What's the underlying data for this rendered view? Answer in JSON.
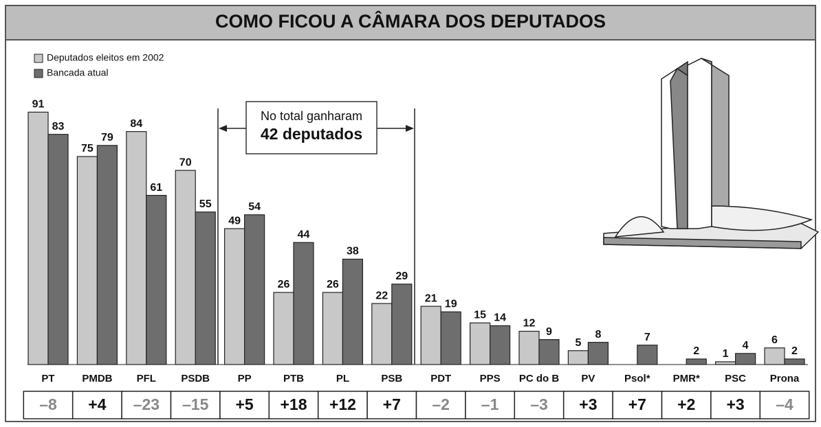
{
  "chart_data": {
    "type": "bar",
    "title": "COMO FICOU A CÂMARA DOS DEPUTADOS",
    "categories": [
      "PT",
      "PMDB",
      "PFL",
      "PSDB",
      "PP",
      "PTB",
      "PL",
      "PSB",
      "PDT",
      "PPS",
      "PC do B",
      "PV",
      "Psol*",
      "PMR*",
      "PSC",
      "Prona"
    ],
    "series": [
      {
        "name": "Deputados eleitos em 2002",
        "color": "#c8c8c8",
        "values": [
          91,
          75,
          84,
          70,
          49,
          26,
          26,
          22,
          21,
          15,
          12,
          5,
          null,
          null,
          1,
          6
        ]
      },
      {
        "name": "Bancada atual",
        "color": "#6e6e6e",
        "values": [
          83,
          79,
          61,
          55,
          54,
          44,
          38,
          29,
          19,
          14,
          9,
          8,
          7,
          2,
          4,
          2
        ]
      }
    ],
    "changes": {
      "values": [
        -8,
        4,
        -23,
        -15,
        5,
        18,
        12,
        7,
        -2,
        -1,
        -3,
        3,
        7,
        2,
        3,
        -4
      ],
      "labels": [
        "–8",
        "+4",
        "–23",
        "–15",
        "+5",
        "+18",
        "+12",
        "+7",
        "–2",
        "–1",
        "–3",
        "+3",
        "+7",
        "+2",
        "+3",
        "–4"
      ]
    },
    "annotation": [
      "No total ganharam",
      "42 deputados"
    ]
  }
}
